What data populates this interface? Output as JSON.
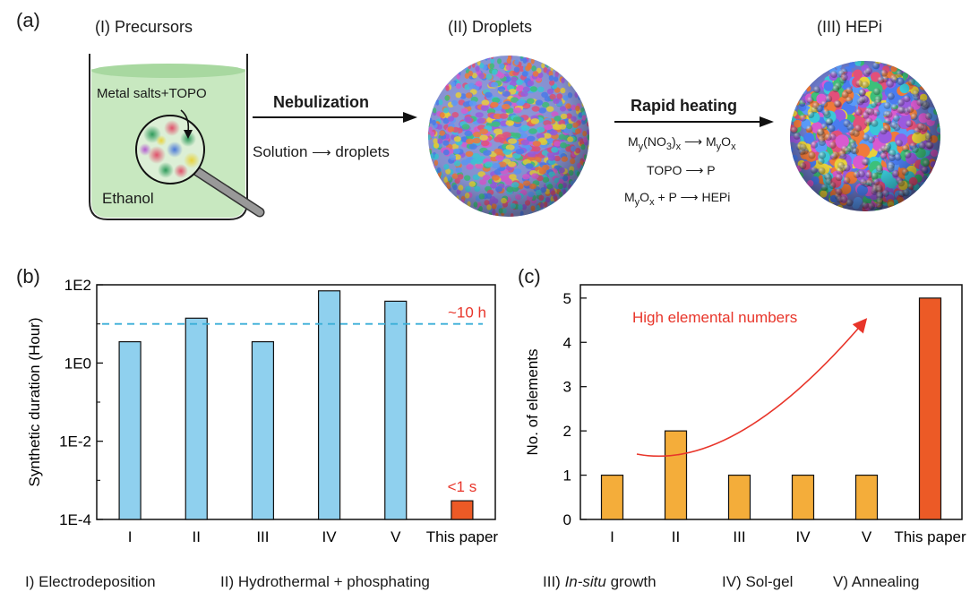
{
  "panel_a": {
    "letter": "(a)",
    "step1_title": "(I) Precursors",
    "step2_title": "(II) Droplets",
    "step3_title": "(III) HEPi",
    "metal_salts": "Metal salts+TOPO",
    "solvent": "Ethanol",
    "process1": "Nebulization",
    "process1_sub_left": "Solution",
    "process1_sub_right": "droplets",
    "process2": "Rapid heating",
    "eq1": {
      "m": "M",
      "y": "y",
      "no3": "(NO",
      "three": "3",
      "close": ")",
      "x": "x",
      "rhs_m": "M",
      "rhs_y": "y",
      "rhs_o": "O",
      "rhs_x": "x"
    },
    "eq2": {
      "lhs": "TOPO",
      "rhs": "P"
    },
    "eq3": {
      "m": "M",
      "y": "y",
      "o": "O",
      "x": "x",
      "plus": "+ P",
      "rhs": "HEPi"
    }
  },
  "colors": {
    "bar_blue": "#8fd0ee",
    "bar_orange": "#f4ad3a",
    "bar_red": "#ec5a26",
    "dash_blue": "#3aaed8",
    "annot_red": "#e8352a",
    "beaker_green": "#c8e8c0"
  },
  "legend": {
    "i": "I) Electrodeposition",
    "ii": "II) Hydrothermal + phosphating",
    "iii_pre": "III) ",
    "iii_em": "In-situ",
    "iii_post": " growth",
    "iv": "IV) Sol-gel",
    "v": "V) Annealing"
  },
  "chart_data": [
    {
      "type": "bar",
      "panel": "(b)",
      "ylabel": "Synthetic duration (Hour)",
      "yscale": "log",
      "ylim": [
        0.0001,
        100
      ],
      "yticks": [
        "1E-4",
        "1E-2",
        "1E0",
        "1E2"
      ],
      "categories": [
        "I",
        "II",
        "III",
        "IV",
        "V",
        "This paper"
      ],
      "values": [
        3.5,
        14,
        3.5,
        70,
        38,
        0.0003
      ],
      "reference_line": {
        "value": 10,
        "label": "~10 h"
      },
      "annotation": "<1 s"
    },
    {
      "type": "bar",
      "panel": "(c)",
      "ylabel": "No. of elements",
      "ylim": [
        0,
        5.3
      ],
      "yticks": [
        "0",
        "1",
        "2",
        "3",
        "4",
        "5"
      ],
      "categories": [
        "I",
        "II",
        "III",
        "IV",
        "V",
        "This paper"
      ],
      "values": [
        1,
        2,
        1,
        1,
        1,
        5
      ],
      "annotation": "High elemental numbers"
    }
  ]
}
